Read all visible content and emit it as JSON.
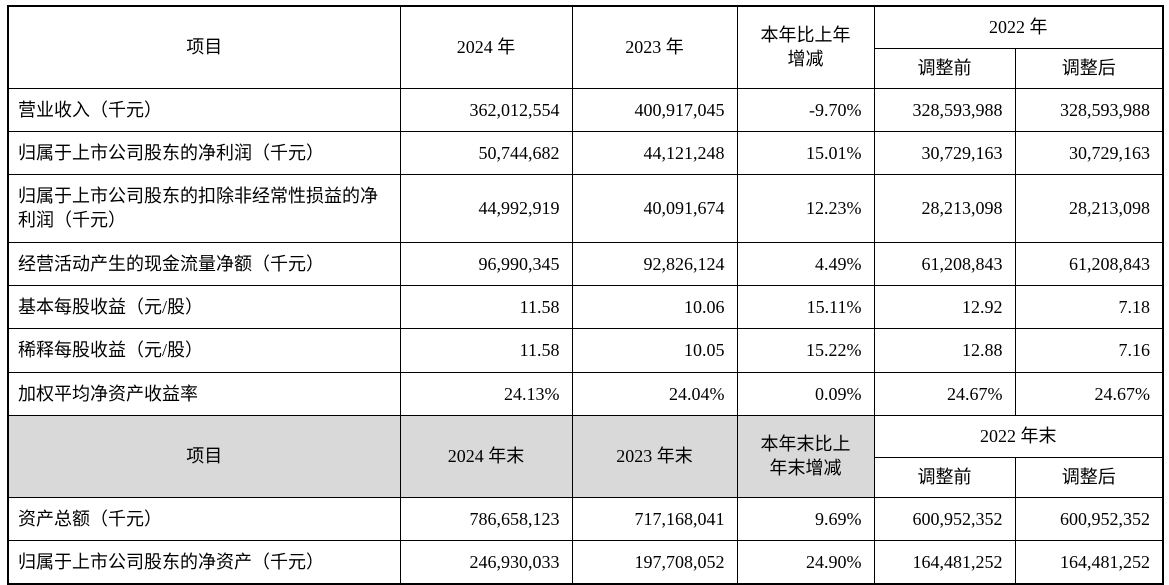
{
  "table1": {
    "header": {
      "item": "项目",
      "y2024": "2024 年",
      "y2023": "2023 年",
      "change": "本年比上年\n增减",
      "y2022": "2022 年",
      "adj_before": "调整前",
      "adj_after": "调整后"
    },
    "rows": [
      {
        "label": "营业收入（千元）",
        "y2024": "362,012,554",
        "y2023": "400,917,045",
        "change": "-9.70%",
        "before": "328,593,988",
        "after": "328,593,988"
      },
      {
        "label": "归属于上市公司股东的净利润（千元）",
        "y2024": "50,744,682",
        "y2023": "44,121,248",
        "change": "15.01%",
        "before": "30,729,163",
        "after": "30,729,163"
      },
      {
        "label": "归属于上市公司股东的扣除非经常性损益的净利润（千元）",
        "y2024": "44,992,919",
        "y2023": "40,091,674",
        "change": "12.23%",
        "before": "28,213,098",
        "after": "28,213,098"
      },
      {
        "label": "经营活动产生的现金流量净额（千元）",
        "y2024": "96,990,345",
        "y2023": "92,826,124",
        "change": "4.49%",
        "before": "61,208,843",
        "after": "61,208,843"
      },
      {
        "label": "基本每股收益（元/股）",
        "y2024": "11.58",
        "y2023": "10.06",
        "change": "15.11%",
        "before": "12.92",
        "after": "7.18"
      },
      {
        "label": "稀释每股收益（元/股）",
        "y2024": "11.58",
        "y2023": "10.05",
        "change": "15.22%",
        "before": "12.88",
        "after": "7.16"
      },
      {
        "label": "加权平均净资产收益率",
        "y2024": "24.13%",
        "y2023": "24.04%",
        "change": "0.09%",
        "before": "24.67%",
        "after": "24.67%"
      }
    ]
  },
  "table2": {
    "header": {
      "item": "项目",
      "y2024": "2024 年末",
      "y2023": "2023 年末",
      "change": "本年末比上\n年末增减",
      "y2022": "2022 年末",
      "adj_before": "调整前",
      "adj_after": "调整后"
    },
    "rows": [
      {
        "label": "资产总额（千元）",
        "y2024": "786,658,123",
        "y2023": "717,168,041",
        "change": "9.69%",
        "before": "600,952,352",
        "after": "600,952,352"
      },
      {
        "label": "归属于上市公司股东的净资产（千元）",
        "y2024": "246,930,033",
        "y2023": "197,708,052",
        "change": "24.90%",
        "before": "164,481,252",
        "after": "164,481,252"
      }
    ]
  }
}
